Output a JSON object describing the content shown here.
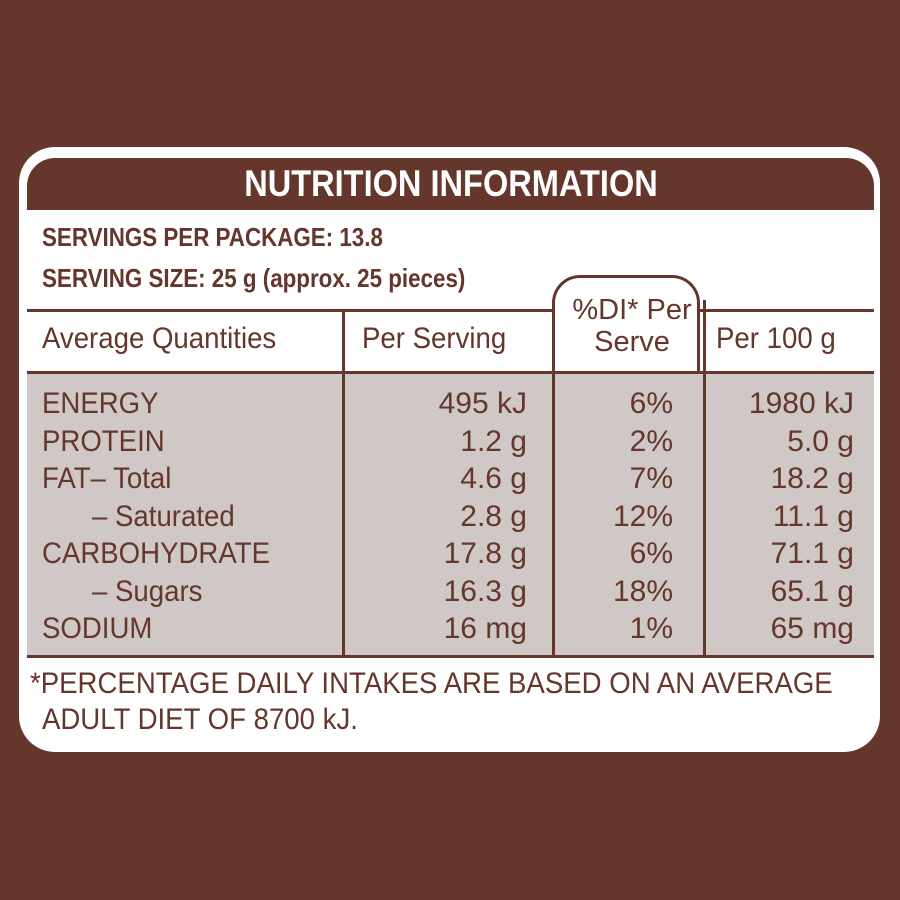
{
  "title": "NUTRITION INFORMATION",
  "servings_per_package": "SERVINGS PER PACKAGE: 13.8",
  "serving_size": "SERVING SIZE: 25 g (approx. 25 pieces)",
  "headers": {
    "quantities": "Average Quantities",
    "per_serving": "Per Serving",
    "di_line1": "%DI* Per",
    "di_line2": "Serve",
    "per_100g": "Per 100 g"
  },
  "rows": [
    {
      "label": "ENERGY",
      "per_serving": "495 kJ",
      "di": "6%",
      "per_100g": "1980 kJ"
    },
    {
      "label": "PROTEIN",
      "per_serving": "1.2 g",
      "di": "2%",
      "per_100g": "5.0 g"
    },
    {
      "label": "FAT– Total",
      "per_serving": "4.6 g",
      "di": "7%",
      "per_100g": "18.2 g"
    },
    {
      "label": "– Saturated",
      "per_serving": "2.8 g",
      "di": "12%",
      "per_100g": "11.1 g"
    },
    {
      "label": "CARBOHYDRATE",
      "per_serving": "17.8 g",
      "di": "6%",
      "per_100g": "71.1 g"
    },
    {
      "label": "– Sugars",
      "per_serving": "16.3 g",
      "di": "18%",
      "per_100g": "65.1 g"
    },
    {
      "label": "SODIUM",
      "per_serving": "16 mg",
      "di": "1%",
      "per_100g": "65 mg"
    }
  ],
  "footnote": {
    "line1": "*PERCENTAGE DAILY INTAKES ARE BASED ON AN AVERAGE",
    "line2": "ADULT DIET OF 8700 kJ."
  },
  "colors": {
    "brown": "#65362b",
    "shade": "#cfc8c6",
    "panel": "#ffffff"
  }
}
